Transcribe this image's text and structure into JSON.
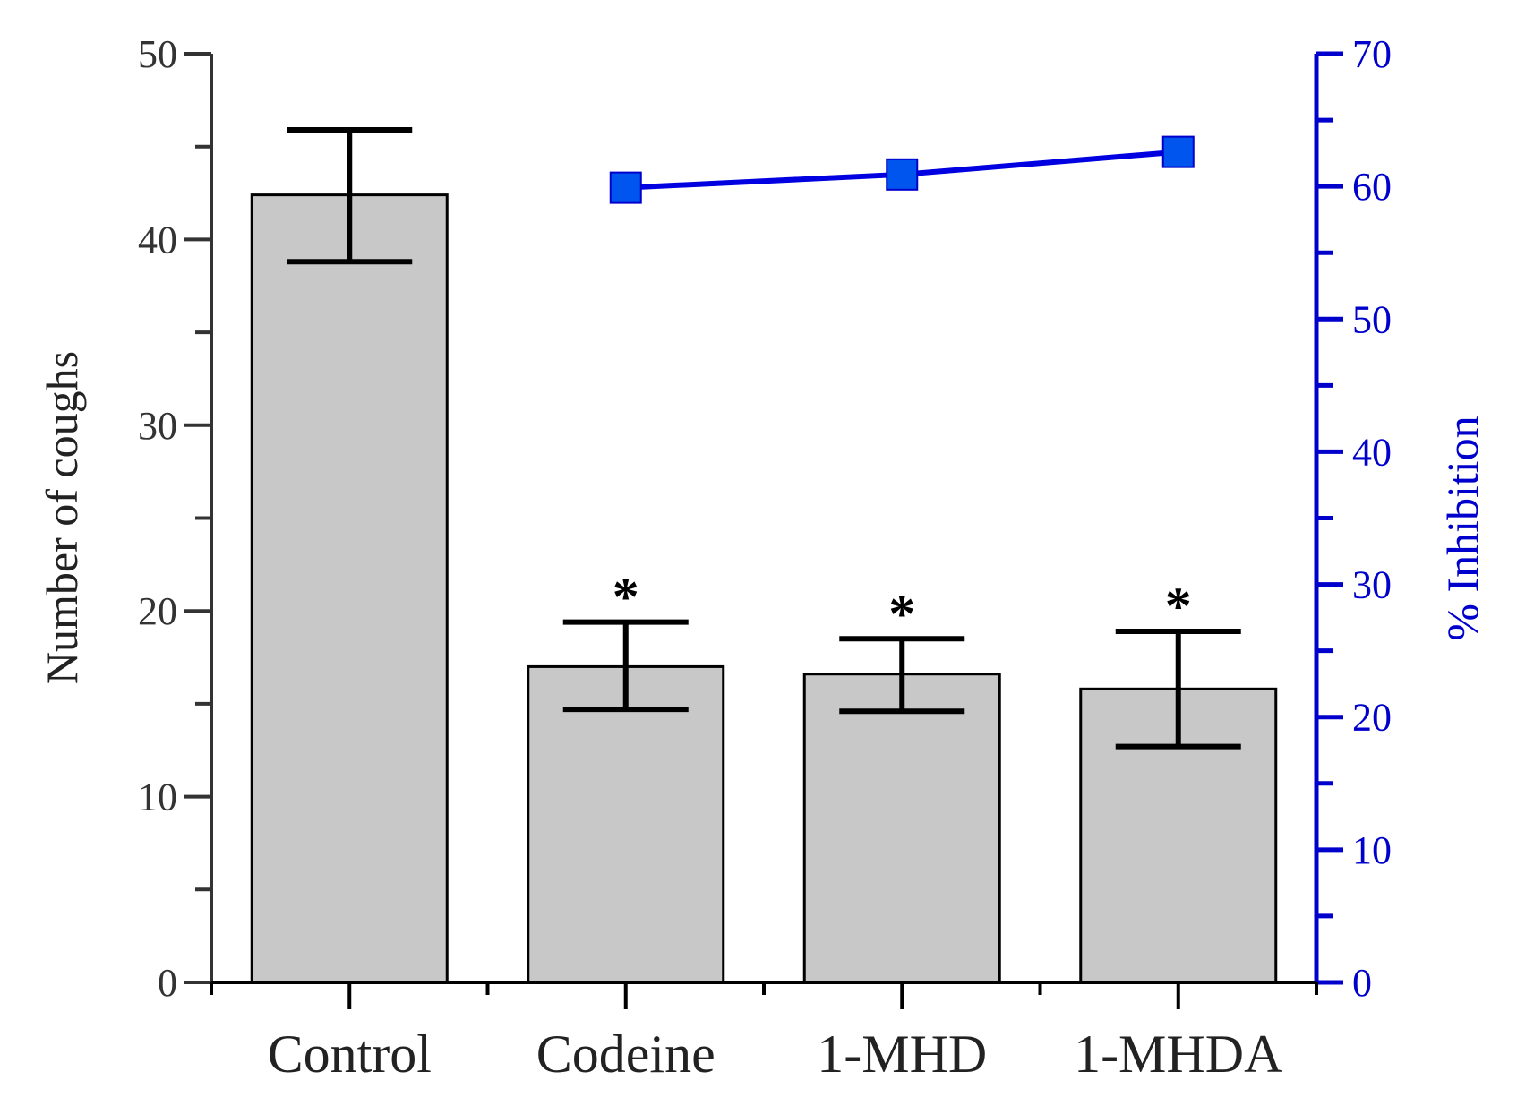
{
  "chart_data": {
    "type": "bar",
    "categories": [
      "Control",
      "Codeine",
      "1-MHD",
      "1-MHDA"
    ],
    "series": [
      {
        "name": "Number of coughs",
        "axis": "left",
        "kind": "bar",
        "values": [
          42.4,
          17.0,
          16.6,
          15.8
        ],
        "error_low": [
          38.8,
          14.7,
          14.6,
          12.7
        ],
        "error_high": [
          45.9,
          19.4,
          18.5,
          18.9
        ],
        "significance": [
          "",
          "*",
          "*",
          "*"
        ]
      },
      {
        "name": "% Inhibition",
        "axis": "right",
        "kind": "line",
        "values": [
          null,
          59.9,
          60.9,
          62.6
        ]
      }
    ],
    "ylabel": "Number of coughs",
    "ylim": [
      0,
      50
    ],
    "yticks": [
      "0",
      "10",
      "20",
      "30",
      "40",
      "50"
    ],
    "y2label": "% Inhibition",
    "y2lim": [
      0,
      70
    ],
    "y2ticks": [
      "0",
      "10",
      "20",
      "30",
      "40",
      "50",
      "60",
      "70"
    ],
    "colors": {
      "bar_fill": "#c8c8c8",
      "bar_stroke": "#000000",
      "left_axis": "#333333",
      "right_axis": "#0000cc",
      "line": "#0000e0",
      "marker": "#0055ee"
    }
  }
}
